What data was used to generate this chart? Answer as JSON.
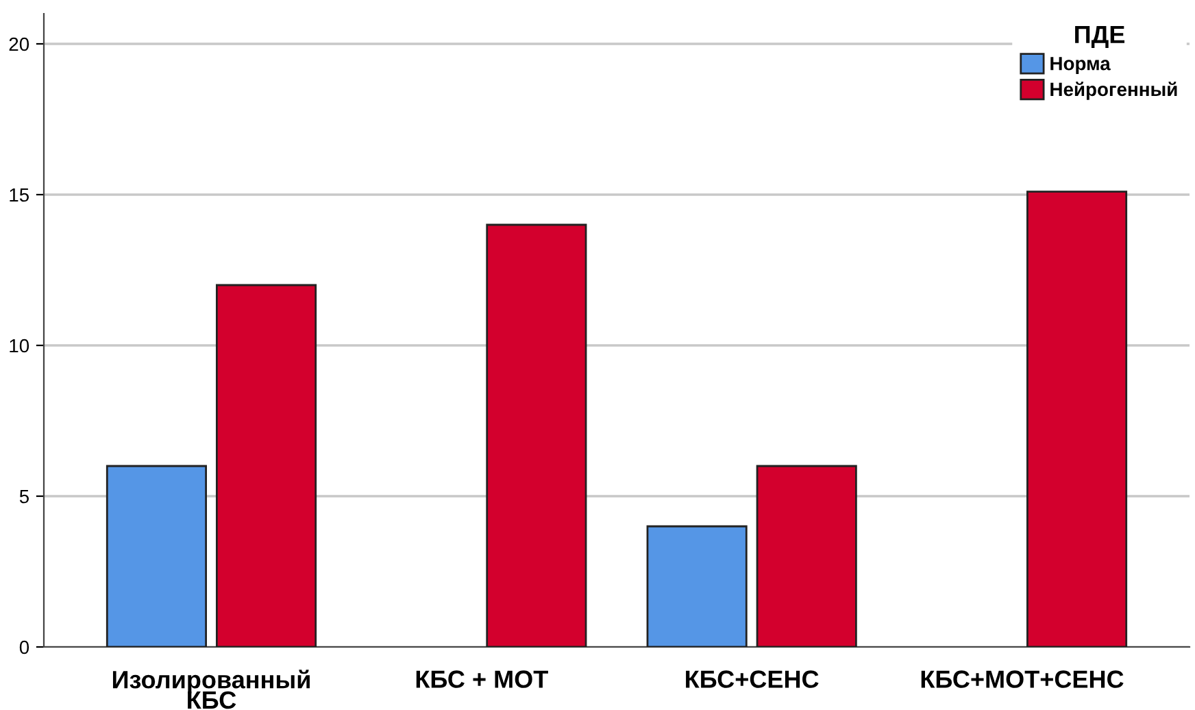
{
  "chart_data": {
    "type": "bar",
    "categories": [
      "Изолированный\nКБС",
      "КБС + МОТ",
      "КБС+СЕНС",
      "КБС+МОТ+СЕНС"
    ],
    "series": [
      {
        "name": "Норма",
        "color": "#5596e6",
        "values": [
          6,
          null,
          4,
          null
        ]
      },
      {
        "name": "Нейрогенный",
        "color": "#d3002d",
        "values": [
          12,
          14,
          6,
          15.1
        ]
      }
    ],
    "legend_title": "ПДЕ",
    "legend": "top right",
    "ylim": [
      0,
      21
    ],
    "yticks": [
      0,
      5,
      10,
      15,
      20
    ],
    "grid": "y"
  }
}
